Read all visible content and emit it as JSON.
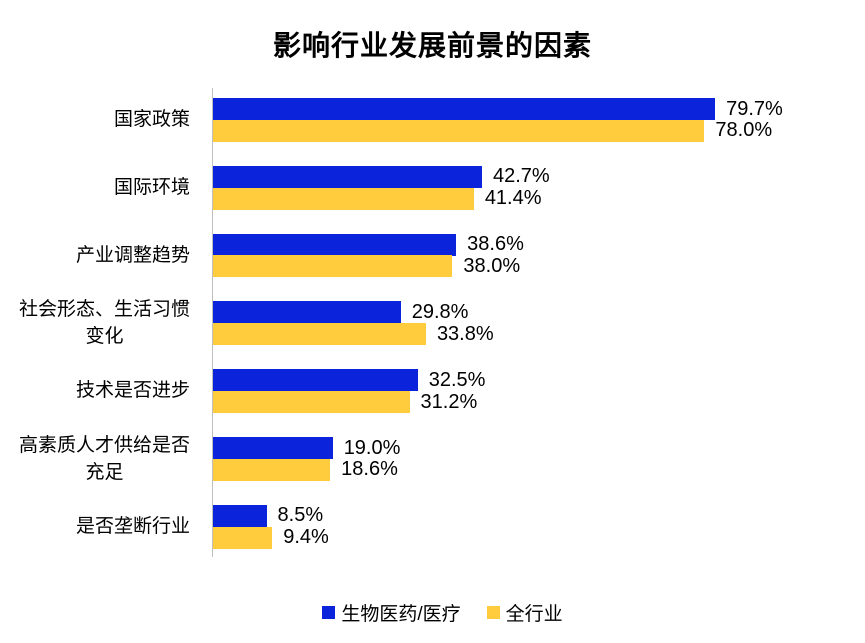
{
  "title": "影响行业发展前景的因素",
  "chart_data": {
    "type": "bar",
    "orientation": "horizontal",
    "title": "影响行业发展前景的因素",
    "categories": [
      "国家政策",
      "国际环境",
      "产业调整趋势",
      "社会形态、生活习惯\n变化",
      "技术是否进步",
      "高素质人才供给是否\n充足",
      "是否垄断行业"
    ],
    "series": [
      {
        "name": "生物医药/医疗",
        "color": "#0b24db",
        "values": [
          79.7,
          42.7,
          38.6,
          29.8,
          32.5,
          19.0,
          8.5
        ]
      },
      {
        "name": "全行业",
        "color": "#ffcc3e",
        "values": [
          78.0,
          41.4,
          38.0,
          33.8,
          31.2,
          18.6,
          9.4
        ]
      }
    ],
    "value_suffix": "%",
    "xlim": [
      0,
      100
    ],
    "legend_position": "bottom",
    "data_labels": true,
    "grid": false,
    "axis_line_color": "#bfbfbf"
  }
}
